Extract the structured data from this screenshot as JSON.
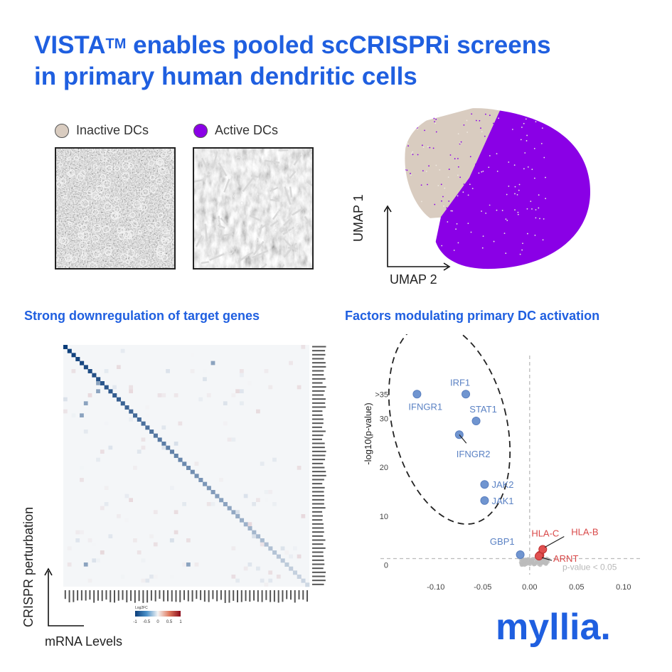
{
  "title": {
    "main": "VISTA",
    "superscript": "TM",
    "line1_rest": " enables pooled scCRISPRi screens",
    "line2": "in primary human dendritic cells"
  },
  "legend": {
    "inactive": {
      "label": "Inactive DCs",
      "color": "#d9ccc0"
    },
    "active": {
      "label": "Active DCs",
      "color": "#8a00e6"
    }
  },
  "umap": {
    "x_label": "UMAP 2",
    "y_label": "UMAP 1"
  },
  "left_section": {
    "heading": "Strong downregulation of target genes",
    "x_label": "mRNA Levels",
    "y_label": "CRISPR perturbation"
  },
  "right_section": {
    "heading": "Factors modulating primary DC activation"
  },
  "heatmap_legend": {
    "title": "Log2FC",
    "ticks": [
      "-1",
      "-0.5",
      "0",
      "0.5",
      "1"
    ]
  },
  "colors": {
    "brand": "#1f5fe0",
    "point_blue": "#7095d0",
    "point_red": "#e05050",
    "point_gray": "#bcbcbc"
  },
  "chart_data": {
    "type": "scatter",
    "xlabel": "",
    "ylabel": "-log10(p-value)",
    "xlim": [
      -0.14,
      0.11
    ],
    "ylim": [
      -3,
      40
    ],
    "x_ticks": [
      "-0.10",
      "-0.05",
      "0.00",
      "0.05",
      "0.10"
    ],
    "x_tick_values": [
      -0.1,
      -0.05,
      0.0,
      0.05,
      0.1
    ],
    "y_ticks": [
      "0",
      "10",
      "20",
      "30",
      ">35"
    ],
    "y_tick_values": [
      0,
      10,
      20,
      30,
      35
    ],
    "threshold_label": "p-value < 0.05",
    "threshold_y": 1.3,
    "points": [
      {
        "gene": "IFNGR1",
        "x": -0.12,
        "y": 35,
        "color": "blue"
      },
      {
        "gene": "IRF1",
        "x": -0.068,
        "y": 35,
        "color": "blue"
      },
      {
        "gene": "STAT1",
        "x": -0.057,
        "y": 29.5,
        "color": "blue"
      },
      {
        "gene": "IFNGR2",
        "x": -0.075,
        "y": 26.7,
        "color": "blue"
      },
      {
        "gene": "JAK2",
        "x": -0.048,
        "y": 16.5,
        "color": "blue"
      },
      {
        "gene": "JAK1",
        "x": -0.048,
        "y": 13.2,
        "color": "blue"
      },
      {
        "gene": "GBP1",
        "x": -0.01,
        "y": 2.1,
        "color": "blue"
      },
      {
        "gene": "HLA-C",
        "x": 0.011,
        "y": 2.0,
        "color": "red"
      },
      {
        "gene": "HLA-B",
        "x": 0.014,
        "y": 3.2,
        "color": "red"
      },
      {
        "gene": "ARNT",
        "x": 0.01,
        "y": 1.8,
        "color": "red"
      }
    ]
  },
  "logo": "myllia."
}
